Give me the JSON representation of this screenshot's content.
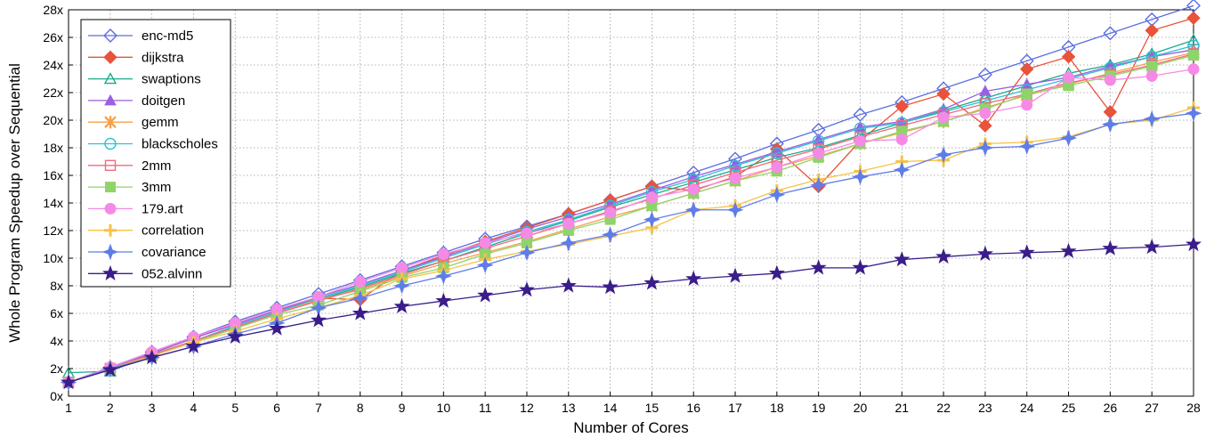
{
  "chart_data": {
    "type": "line",
    "title": "",
    "xlabel": "Number of Cores",
    "ylabel": "Whole Program Speedup over Sequential",
    "x": [
      1,
      2,
      3,
      4,
      5,
      6,
      7,
      8,
      9,
      10,
      11,
      12,
      13,
      14,
      15,
      16,
      17,
      18,
      19,
      20,
      21,
      22,
      23,
      24,
      25,
      26,
      27,
      28
    ],
    "xlim": [
      1,
      28
    ],
    "ylim": [
      0,
      28
    ],
    "yticks": [
      0,
      2,
      4,
      6,
      8,
      10,
      12,
      14,
      16,
      18,
      20,
      22,
      24,
      26,
      28
    ],
    "ytick_suffix": "x",
    "grid": true,
    "legend_position": "top-left",
    "series": [
      {
        "name": "enc-md5",
        "color": "#5b6ee1",
        "marker": "diamond-open",
        "values": [
          1.0,
          2.1,
          3.2,
          4.3,
          5.4,
          6.4,
          7.4,
          8.4,
          9.4,
          10.4,
          11.4,
          12.3,
          13.2,
          14.2,
          15.2,
          16.2,
          17.2,
          18.3,
          19.3,
          20.4,
          21.3,
          22.3,
          23.3,
          24.3,
          25.3,
          26.3,
          27.3,
          28.3
        ]
      },
      {
        "name": "dijkstra",
        "color": "#e8533a",
        "marker": "diamond-filled",
        "values": [
          1.0,
          2.1,
          3.1,
          4.2,
          5.2,
          6.2,
          7.1,
          7.0,
          9.1,
          10.2,
          11.2,
          12.2,
          13.2,
          14.2,
          15.2,
          14.9,
          15.9,
          17.9,
          15.2,
          18.5,
          21.0,
          21.9,
          19.6,
          23.7,
          24.6,
          20.6,
          26.5,
          27.4
        ]
      },
      {
        "name": "swaptions",
        "color": "#1aab8a",
        "marker": "triangle-open",
        "values": [
          1.7,
          1.8,
          3.0,
          4.0,
          5.0,
          6.0,
          7.0,
          7.9,
          8.9,
          9.8,
          10.8,
          11.8,
          12.7,
          13.7,
          14.6,
          15.5,
          16.4,
          17.3,
          18.0,
          18.9,
          19.8,
          20.7,
          21.6,
          22.5,
          23.4,
          24.0,
          24.8,
          25.8
        ]
      },
      {
        "name": "doitgen",
        "color": "#9b5fe0",
        "marker": "triangle-filled",
        "values": [
          1.0,
          2.1,
          3.1,
          4.2,
          5.2,
          6.2,
          7.2,
          8.1,
          9.1,
          10.1,
          11.1,
          12.1,
          13.0,
          13.9,
          14.9,
          15.9,
          16.8,
          17.7,
          18.6,
          19.5,
          19.9,
          20.8,
          22.1,
          22.6,
          23.1,
          23.9,
          24.6,
          25.1
        ]
      },
      {
        "name": "gemm",
        "color": "#f5a04a",
        "marker": "asterisk",
        "values": [
          1.0,
          2.0,
          3.0,
          4.0,
          5.0,
          6.0,
          7.0,
          7.7,
          8.7,
          9.6,
          10.4,
          11.2,
          12.1,
          13.0,
          13.8,
          14.7,
          15.6,
          16.6,
          17.4,
          18.3,
          19.1,
          19.9,
          20.9,
          21.8,
          22.6,
          23.4,
          24.2,
          24.9
        ]
      },
      {
        "name": "blackscholes",
        "color": "#2ec0d6",
        "marker": "circle-open",
        "values": [
          1.0,
          2.0,
          3.0,
          4.0,
          5.1,
          6.1,
          7.1,
          8.0,
          9.0,
          10.0,
          11.0,
          11.9,
          12.8,
          13.8,
          14.8,
          15.7,
          16.7,
          17.6,
          18.5,
          19.4,
          19.8,
          20.6,
          21.4,
          22.2,
          23.0,
          23.8,
          24.6,
          25.4
        ]
      },
      {
        "name": "2mm",
        "color": "#f06a80",
        "marker": "square-open",
        "values": [
          1.0,
          2.0,
          3.0,
          4.0,
          5.0,
          6.0,
          6.9,
          7.8,
          8.8,
          9.8,
          10.7,
          11.6,
          12.5,
          13.4,
          14.3,
          15.3,
          16.2,
          17.1,
          17.9,
          18.8,
          19.6,
          20.4,
          21.2,
          21.9,
          22.7,
          23.3,
          24.0,
          24.8
        ]
      },
      {
        "name": "3mm",
        "color": "#8fd46a",
        "marker": "square-filled",
        "values": [
          1.0,
          2.0,
          2.9,
          3.9,
          4.9,
          5.9,
          6.6,
          7.6,
          8.6,
          9.3,
          10.3,
          11.1,
          12.0,
          12.8,
          13.8,
          14.7,
          15.6,
          16.3,
          17.3,
          18.3,
          19.2,
          19.9,
          20.8,
          21.9,
          22.5,
          23.2,
          23.9,
          24.7
        ]
      },
      {
        "name": "179.art",
        "color": "#f58ae6",
        "marker": "circle-filled",
        "values": [
          1.0,
          2.1,
          3.2,
          4.3,
          5.3,
          6.3,
          7.2,
          8.3,
          9.3,
          10.3,
          11.1,
          11.8,
          12.5,
          13.3,
          14.4,
          15.0,
          15.8,
          16.6,
          17.6,
          18.5,
          18.6,
          20.2,
          20.5,
          21.1,
          23.1,
          22.9,
          23.2,
          23.7
        ]
      },
      {
        "name": "correlation",
        "color": "#f7c248",
        "marker": "plus",
        "values": [
          1.0,
          2.0,
          2.9,
          3.9,
          4.7,
          5.6,
          6.4,
          7.3,
          8.5,
          9.1,
          9.9,
          10.5,
          11.0,
          11.6,
          12.2,
          13.5,
          13.8,
          14.9,
          15.7,
          16.3,
          17.0,
          17.1,
          18.3,
          18.4,
          18.8,
          19.7,
          20.0,
          20.9
        ]
      },
      {
        "name": "covariance",
        "color": "#5f7de8",
        "marker": "star4",
        "values": [
          1.0,
          2.0,
          2.8,
          3.6,
          4.5,
          5.3,
          6.4,
          7.1,
          8.0,
          8.7,
          9.5,
          10.4,
          11.1,
          11.7,
          12.8,
          13.5,
          13.5,
          14.6,
          15.3,
          15.9,
          16.4,
          17.5,
          18.0,
          18.1,
          18.7,
          19.7,
          20.1,
          20.5
        ]
      },
      {
        "name": "052.alvinn",
        "color": "#3a1d8a",
        "marker": "star5",
        "values": [
          1.0,
          1.9,
          2.8,
          3.6,
          4.3,
          4.9,
          5.5,
          6.0,
          6.5,
          6.9,
          7.3,
          7.7,
          8.0,
          7.9,
          8.2,
          8.5,
          8.7,
          8.9,
          9.3,
          9.3,
          9.9,
          10.1,
          10.3,
          10.4,
          10.5,
          10.7,
          10.8,
          11.0
        ]
      }
    ]
  }
}
